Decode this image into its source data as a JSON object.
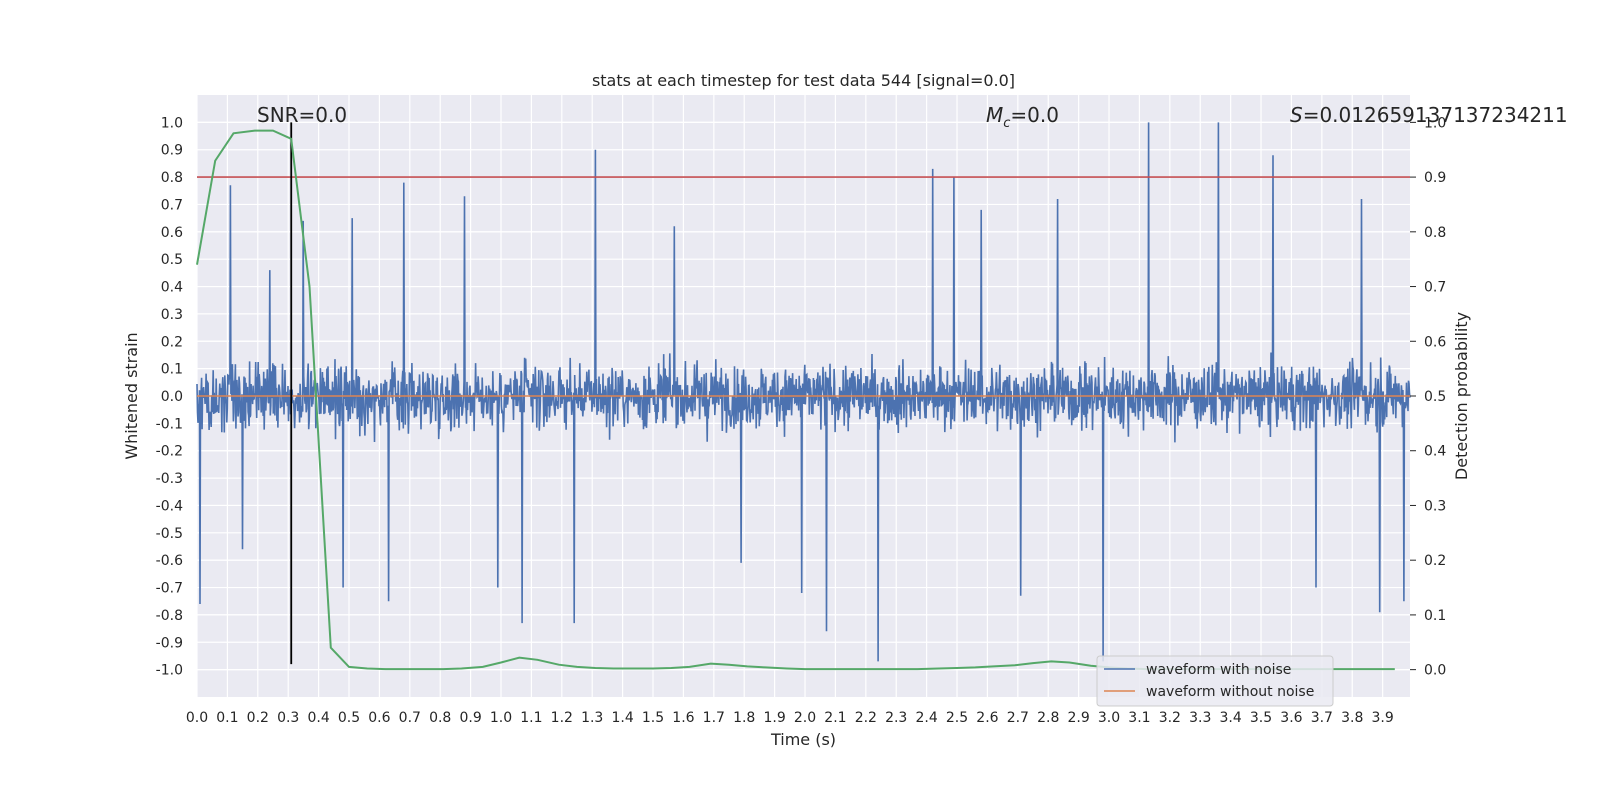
{
  "chart_data": {
    "type": "line",
    "title": "stats at each timestep for test data 544 [signal=0.0]",
    "xlabel": "Time (s)",
    "ylabel_left": "Whitened strain",
    "ylabel_right": "Detection probability",
    "xlim": [
      0.0,
      3.99
    ],
    "ylim_left": [
      -1.1,
      1.1
    ],
    "ylim_right": [
      -0.05,
      1.05
    ],
    "x_ticks": [
      "0.0",
      "0.1",
      "0.2",
      "0.3",
      "0.4",
      "0.5",
      "0.6",
      "0.7",
      "0.8",
      "0.9",
      "1.0",
      "1.1",
      "1.2",
      "1.3",
      "1.4",
      "1.5",
      "1.6",
      "1.7",
      "1.8",
      "1.9",
      "2.0",
      "2.1",
      "2.2",
      "2.3",
      "2.4",
      "2.5",
      "2.6",
      "2.7",
      "2.8",
      "2.9",
      "3.0",
      "3.1",
      "3.2",
      "3.3",
      "3.4",
      "3.5",
      "3.6",
      "3.7",
      "3.8",
      "3.9"
    ],
    "y_ticks_left": [
      "1.0",
      "0.9",
      "0.8",
      "0.7",
      "0.6",
      "0.5",
      "0.4",
      "0.3",
      "0.2",
      "0.1",
      "0.0",
      "-0.1",
      "-0.2",
      "-0.3",
      "-0.4",
      "-0.5",
      "-0.6",
      "-0.7",
      "-0.8",
      "-0.9",
      "-1.0"
    ],
    "y_ticks_right": [
      "1.0",
      "0.9",
      "0.8",
      "0.7",
      "0.6",
      "0.5",
      "0.4",
      "0.3",
      "0.2",
      "0.1",
      "0.0"
    ],
    "grid": true,
    "legend_position": "bottom-right",
    "annotations": {
      "snr": "SNR=0.0",
      "mc_symbol": "M",
      "mc_sub": "c",
      "mc_value": "=0.0",
      "s_symbol": "S",
      "s_value": "=0.012659137137234211"
    },
    "series": [
      {
        "name": "waveform with noise",
        "color": "#4c72b0",
        "axis": "left",
        "note": "dense whitened-noise trace, approx. uniform sampling over 0-4 s",
        "peaks": [
          {
            "x": 0.01,
            "y": 0.67
          },
          {
            "x": 0.01,
            "y": -0.76
          },
          {
            "x": 0.11,
            "y": 0.77
          },
          {
            "x": 0.15,
            "y": -0.56
          },
          {
            "x": 0.24,
            "y": 0.46
          },
          {
            "x": 0.35,
            "y": 0.64
          },
          {
            "x": 0.48,
            "y": -0.7
          },
          {
            "x": 0.51,
            "y": 0.65
          },
          {
            "x": 0.63,
            "y": -0.75
          },
          {
            "x": 0.68,
            "y": 0.78
          },
          {
            "x": 0.88,
            "y": 0.73
          },
          {
            "x": 0.99,
            "y": -0.7
          },
          {
            "x": 1.07,
            "y": -0.83
          },
          {
            "x": 1.24,
            "y": -0.83
          },
          {
            "x": 1.31,
            "y": 0.9
          },
          {
            "x": 1.57,
            "y": 0.62
          },
          {
            "x": 1.79,
            "y": -0.61
          },
          {
            "x": 1.99,
            "y": -0.72
          },
          {
            "x": 2.07,
            "y": -0.86
          },
          {
            "x": 2.24,
            "y": -0.97
          },
          {
            "x": 2.42,
            "y": 0.83
          },
          {
            "x": 2.49,
            "y": 0.8
          },
          {
            "x": 2.58,
            "y": 0.68
          },
          {
            "x": 2.71,
            "y": -0.73
          },
          {
            "x": 2.83,
            "y": 0.72
          },
          {
            "x": 2.98,
            "y": -0.97
          },
          {
            "x": 3.13,
            "y": 1.0
          },
          {
            "x": 3.36,
            "y": 1.0
          },
          {
            "x": 3.54,
            "y": 0.88
          },
          {
            "x": 3.68,
            "y": -0.7
          },
          {
            "x": 3.83,
            "y": 0.72
          },
          {
            "x": 3.89,
            "y": -0.79
          },
          {
            "x": 3.97,
            "y": -0.75
          }
        ]
      },
      {
        "name": "waveform without noise",
        "color": "#dd8452",
        "axis": "left",
        "x": [
          0.0,
          3.99
        ],
        "y": [
          0.0,
          0.0
        ]
      },
      {
        "name": "",
        "color": "#55a868",
        "axis": "right",
        "x": [
          0.0,
          0.06,
          0.12,
          0.19,
          0.25,
          0.31,
          0.37,
          0.44,
          0.5,
          0.56,
          0.62,
          0.69,
          0.75,
          0.81,
          0.87,
          0.94,
          1.0,
          1.06,
          1.12,
          1.19,
          1.25,
          1.31,
          1.37,
          1.44,
          1.5,
          1.56,
          1.62,
          1.69,
          1.75,
          1.81,
          1.87,
          1.94,
          2.0,
          2.06,
          2.12,
          2.19,
          2.25,
          2.31,
          2.37,
          2.44,
          2.5,
          2.56,
          2.62,
          2.69,
          2.75,
          2.81,
          2.87,
          2.94,
          3.0,
          3.06,
          3.12,
          3.19,
          3.25,
          3.31,
          3.37,
          3.44,
          3.5,
          3.56,
          3.62,
          3.69,
          3.75,
          3.81,
          3.87,
          3.94
        ],
        "y": [
          0.74,
          0.93,
          0.98,
          0.985,
          0.985,
          0.97,
          0.7,
          0.04,
          0.005,
          0.002,
          0.001,
          0.001,
          0.001,
          0.001,
          0.002,
          0.005,
          0.013,
          0.022,
          0.018,
          0.009,
          0.005,
          0.003,
          0.002,
          0.002,
          0.002,
          0.003,
          0.005,
          0.011,
          0.009,
          0.006,
          0.004,
          0.002,
          0.001,
          0.001,
          0.001,
          0.001,
          0.001,
          0.001,
          0.001,
          0.002,
          0.003,
          0.004,
          0.006,
          0.008,
          0.012,
          0.015,
          0.013,
          0.007,
          0.004,
          0.002,
          0.001,
          0.001,
          0.001,
          0.001,
          0.001,
          0.001,
          0.001,
          0.001,
          0.001,
          0.001,
          0.001,
          0.001,
          0.001,
          0.001
        ]
      }
    ],
    "reference_lines": [
      {
        "orientation": "horizontal",
        "axis": "right",
        "y": 0.9,
        "color": "#c44e52"
      },
      {
        "orientation": "vertical",
        "x": 0.31,
        "y_from": -0.98,
        "y_to": 1.0,
        "color": "#000000"
      }
    ]
  }
}
